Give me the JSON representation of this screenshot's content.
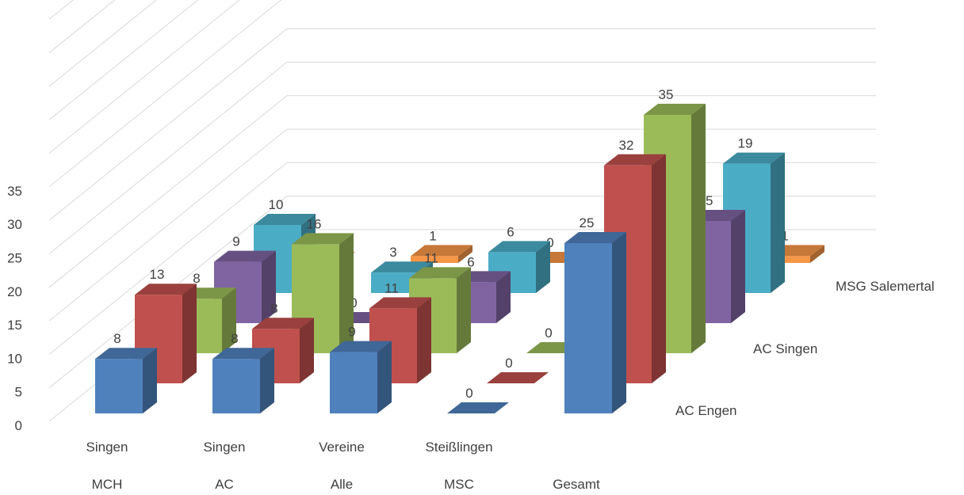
{
  "chart_data": {
    "type": "bar",
    "variant": "3d-column",
    "title": "",
    "categories": [
      {
        "line1": "Singen",
        "line2": "MCH"
      },
      {
        "line1": "Singen",
        "line2": "AC"
      },
      {
        "line1": "Vereine",
        "line2": "Alle"
      },
      {
        "line1": "Steißlingen",
        "line2": "MSC"
      },
      {
        "line1": "",
        "line2": "Gesamt"
      }
    ],
    "series": [
      {
        "name": "AC Engen",
        "color": "#4F81BD",
        "values": [
          8,
          8,
          9,
          0,
          25
        ]
      },
      {
        "name": "",
        "color": "#C0504D",
        "values": [
          13,
          8,
          11,
          0,
          32
        ]
      },
      {
        "name": "AC Singen",
        "color": "#9BBB59",
        "values": [
          8,
          16,
          11,
          0,
          35
        ]
      },
      {
        "name": "",
        "color": "#8064A2",
        "values": [
          9,
          0,
          6,
          0,
          15
        ]
      },
      {
        "name": "",
        "color": "#4BACC6",
        "values": [
          10,
          3,
          6,
          0,
          19
        ]
      },
      {
        "name": "MSG Salemertal",
        "color": "#F79646",
        "values": [
          0,
          1,
          0,
          0,
          1
        ]
      }
    ],
    "y_ticks": [
      "0",
      "5",
      "10",
      "15",
      "20",
      "25",
      "30",
      "35"
    ],
    "ylim": [
      0,
      35
    ],
    "grid": true,
    "legend": "series labels on depth axis (right)"
  }
}
